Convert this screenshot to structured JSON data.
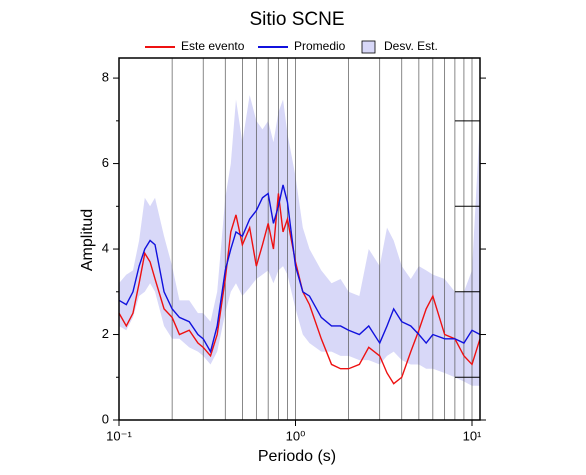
{
  "chart_data": {
    "type": "line",
    "title": "Sitio SCNE",
    "x_label": "Periodo (s)",
    "y_label": "Amplitud",
    "log_x": true,
    "xlim": [
      0.1,
      11.1
    ],
    "ylim": [
      0,
      8.47
    ],
    "xticks": [
      {
        "value": 0.1,
        "label": "10⁻¹"
      },
      {
        "value": 1,
        "label": "10⁰"
      },
      {
        "value": 10,
        "label": "10¹"
      }
    ],
    "xgrid": [
      0.2,
      0.3,
      0.4,
      0.5,
      0.6,
      0.7,
      0.8,
      0.9,
      1,
      2,
      3,
      4,
      5,
      6,
      7,
      8,
      9,
      10
    ],
    "yticks": [
      0,
      2,
      4,
      6,
      8
    ],
    "yminor": [
      1,
      3,
      5,
      7
    ],
    "x": [
      0.1,
      0.11,
      0.12,
      0.13,
      0.14,
      0.15,
      0.16,
      0.18,
      0.2,
      0.22,
      0.25,
      0.28,
      0.3,
      0.33,
      0.36,
      0.4,
      0.43,
      0.46,
      0.5,
      0.55,
      0.6,
      0.65,
      0.7,
      0.75,
      0.8,
      0.85,
      0.9,
      1.0,
      1.1,
      1.2,
      1.4,
      1.6,
      1.8,
      2.0,
      2.3,
      2.6,
      3.0,
      3.3,
      3.6,
      4.0,
      4.5,
      5,
      5.5,
      6,
      7,
      8,
      9,
      10,
      11.1
    ],
    "series": [
      {
        "name": "Este evento",
        "color": "#ee1111",
        "values": [
          2.5,
          2.2,
          2.5,
          3.2,
          3.9,
          3.7,
          3.3,
          2.6,
          2.4,
          2.0,
          2.1,
          1.8,
          1.7,
          1.5,
          2.0,
          3.3,
          4.4,
          4.8,
          4.1,
          4.5,
          3.6,
          4.1,
          4.6,
          4.0,
          5.3,
          4.4,
          4.7,
          3.7,
          3.0,
          2.7,
          1.9,
          1.3,
          1.2,
          1.2,
          1.3,
          1.7,
          1.5,
          1.1,
          0.85,
          1.0,
          1.6,
          2.1,
          2.6,
          2.9,
          2.0,
          1.9,
          1.5,
          1.3,
          1.9
        ]
      },
      {
        "name": "Promedio",
        "color": "#1111dd",
        "values": [
          2.8,
          2.7,
          3.0,
          3.6,
          4.0,
          4.2,
          4.1,
          3.0,
          2.6,
          2.4,
          2.3,
          2.0,
          1.9,
          1.6,
          2.2,
          3.5,
          4.0,
          4.4,
          4.3,
          4.7,
          4.9,
          5.2,
          5.3,
          4.6,
          5.0,
          5.5,
          5.1,
          3.6,
          3.0,
          2.9,
          2.4,
          2.2,
          2.2,
          2.1,
          2.0,
          2.2,
          1.8,
          2.2,
          2.6,
          2.3,
          2.2,
          2.0,
          1.8,
          2.0,
          1.9,
          1.9,
          1.8,
          2.1,
          2.0
        ]
      },
      {
        "name": "Desv. Est.",
        "color": "#d8d8f8",
        "upper": [
          3.2,
          3.4,
          3.5,
          4.2,
          5.2,
          5.0,
          5.2,
          4.3,
          3.6,
          2.8,
          2.8,
          2.5,
          2.5,
          2.3,
          3.0,
          5.2,
          6.0,
          7.5,
          6.5,
          7.6,
          7.0,
          6.8,
          7.0,
          6.5,
          7.2,
          7.5,
          6.7,
          5.7,
          4.5,
          4.0,
          3.5,
          3.2,
          3.3,
          3.0,
          2.9,
          4.0,
          3.6,
          4.5,
          4.2,
          3.6,
          3.3,
          3.6,
          3.5,
          3.4,
          3.3,
          3.0,
          3.0,
          3.5,
          7.0
        ],
        "lower": [
          2.2,
          2.1,
          2.4,
          2.9,
          3.0,
          3.2,
          3.0,
          2.2,
          1.9,
          1.9,
          1.7,
          1.6,
          1.5,
          1.3,
          1.6,
          2.5,
          3.0,
          3.2,
          2.9,
          3.1,
          3.3,
          3.4,
          3.5,
          3.2,
          3.5,
          3.6,
          3.4,
          2.6,
          2.0,
          1.8,
          1.6,
          1.6,
          1.5,
          1.5,
          1.4,
          1.4,
          1.3,
          1.5,
          1.6,
          1.4,
          1.3,
          1.3,
          1.2,
          1.2,
          1.1,
          1.0,
          0.9,
          0.8,
          0.8
        ]
      }
    ]
  }
}
